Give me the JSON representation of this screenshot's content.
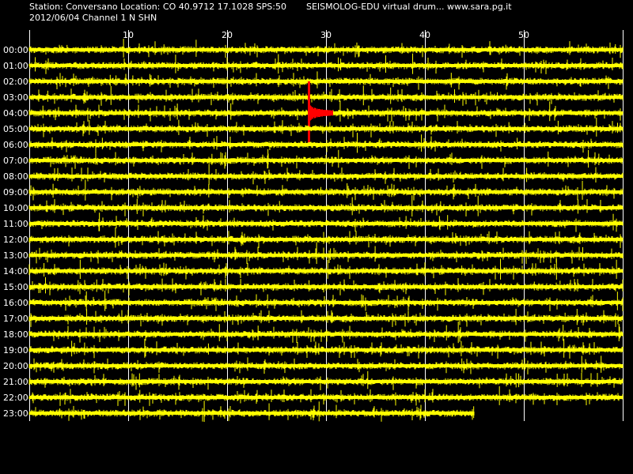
{
  "header": {
    "station_line": "Station: Conversano Location: CO 40.9712 17.1028 SPS:50",
    "title_line": "SEISMOLOG-EDU virtual drum... www.sara.pg.it",
    "date_line": "2012/06/04  Channel 1 N SHN"
  },
  "colors": {
    "background": "#000000",
    "trace": "#ffff00",
    "event_trace": "#ff0000",
    "grid": "#ffffff",
    "text": "#ffffff"
  },
  "chart_data": {
    "type": "line",
    "title": "",
    "xlabel": "",
    "ylabel": "",
    "x_unit": "minutes",
    "xlim": [
      0,
      60
    ],
    "x_ticks": [
      10,
      20,
      30,
      40,
      50
    ],
    "x_tick_labels": [
      "10",
      "20",
      "30",
      "40",
      "50"
    ],
    "grid": true,
    "rows": [
      {
        "label": "00:00",
        "end_minute": 60
      },
      {
        "label": "01:00",
        "end_minute": 60
      },
      {
        "label": "02:00",
        "end_minute": 60
      },
      {
        "label": "03:00",
        "end_minute": 60
      },
      {
        "label": "04:00",
        "end_minute": 60
      },
      {
        "label": "05:00",
        "end_minute": 60
      },
      {
        "label": "06:00",
        "end_minute": 60
      },
      {
        "label": "07:00",
        "end_minute": 60
      },
      {
        "label": "08:00",
        "end_minute": 60
      },
      {
        "label": "09:00",
        "end_minute": 60
      },
      {
        "label": "10:00",
        "end_minute": 60
      },
      {
        "label": "11:00",
        "end_minute": 60
      },
      {
        "label": "12:00",
        "end_minute": 60
      },
      {
        "label": "13:00",
        "end_minute": 60
      },
      {
        "label": "14:00",
        "end_minute": 60
      },
      {
        "label": "15:00",
        "end_minute": 60
      },
      {
        "label": "16:00",
        "end_minute": 60
      },
      {
        "label": "17:00",
        "end_minute": 60
      },
      {
        "label": "18:00",
        "end_minute": 60
      },
      {
        "label": "19:00",
        "end_minute": 60
      },
      {
        "label": "20:00",
        "end_minute": 60
      },
      {
        "label": "21:00",
        "end_minute": 60
      },
      {
        "label": "22:00",
        "end_minute": 60
      },
      {
        "label": "23:00",
        "end_minute": 45
      }
    ],
    "event": {
      "hour_label": "04:00",
      "onset_minute": 28.2,
      "end_minute": 30.7
    }
  }
}
